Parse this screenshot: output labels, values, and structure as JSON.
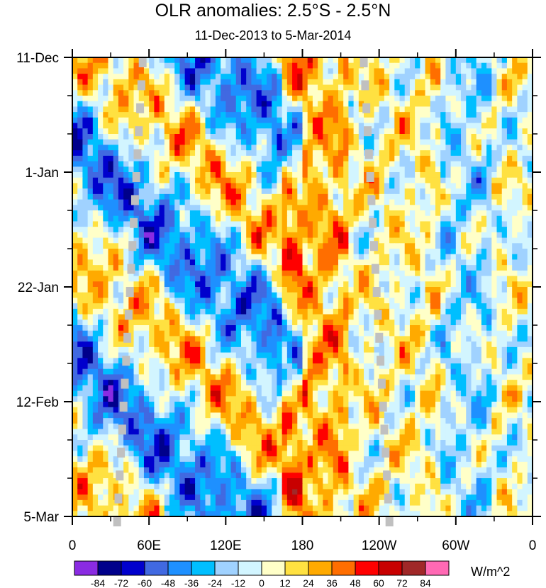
{
  "chart_data": {
    "type": "heatmap",
    "title": "OLR anomalies: 2.5°S - 2.5°N",
    "subtitle": "11-Dec-2013 to 5-Mar-2014",
    "x_ticks": [
      "0",
      "60E",
      "120E",
      "180",
      "120W",
      "60W",
      "0"
    ],
    "x_tick_degrees": [
      0,
      60,
      120,
      180,
      240,
      300,
      360
    ],
    "x_range_degrees": [
      0,
      360
    ],
    "y_ticks": [
      "11-Dec",
      "1-Jan",
      "22-Jan",
      "12-Feb",
      "5-Mar"
    ],
    "y_tick_days": [
      0,
      21,
      42,
      63,
      84
    ],
    "y_range_days": [
      0,
      84
    ],
    "y_direction": "time increases downward",
    "colorbar": {
      "units": "W/m^2",
      "levels": [
        "-84",
        "-72",
        "-60",
        "-48",
        "-36",
        "-24",
        "-12",
        "0",
        "12",
        "24",
        "36",
        "48",
        "60",
        "72",
        "84"
      ],
      "colors": [
        "#8a2be2",
        "#00008b",
        "#0000cd",
        "#4169e1",
        "#1e90ff",
        "#00bfff",
        "#a0d2ff",
        "#d2f5ff",
        "#ffffc8",
        "#ffe141",
        "#ffaa00",
        "#ff6e00",
        "#ff0000",
        "#c80000",
        "#a02828",
        "#ff69b4"
      ]
    },
    "missing_color": "#c0c0c0",
    "features": [
      {
        "name": "eastward-propagating convective (negative) anomaly",
        "lon_start": 20,
        "lon_end": 170,
        "description": "blue bands over Indian Ocean and western Pacific"
      },
      {
        "name": "suppressed convection (positive) anomaly",
        "lon_start": 60,
        "lon_end": 170,
        "description": "orange/red patches from late January into February"
      },
      {
        "name": "positive anomaly band",
        "lon_start": 170,
        "lon_end": 200,
        "description": "yellow/orange band along the date line"
      },
      {
        "name": "missing data streaks",
        "description": "diagonal gray satellite gaps"
      }
    ]
  }
}
